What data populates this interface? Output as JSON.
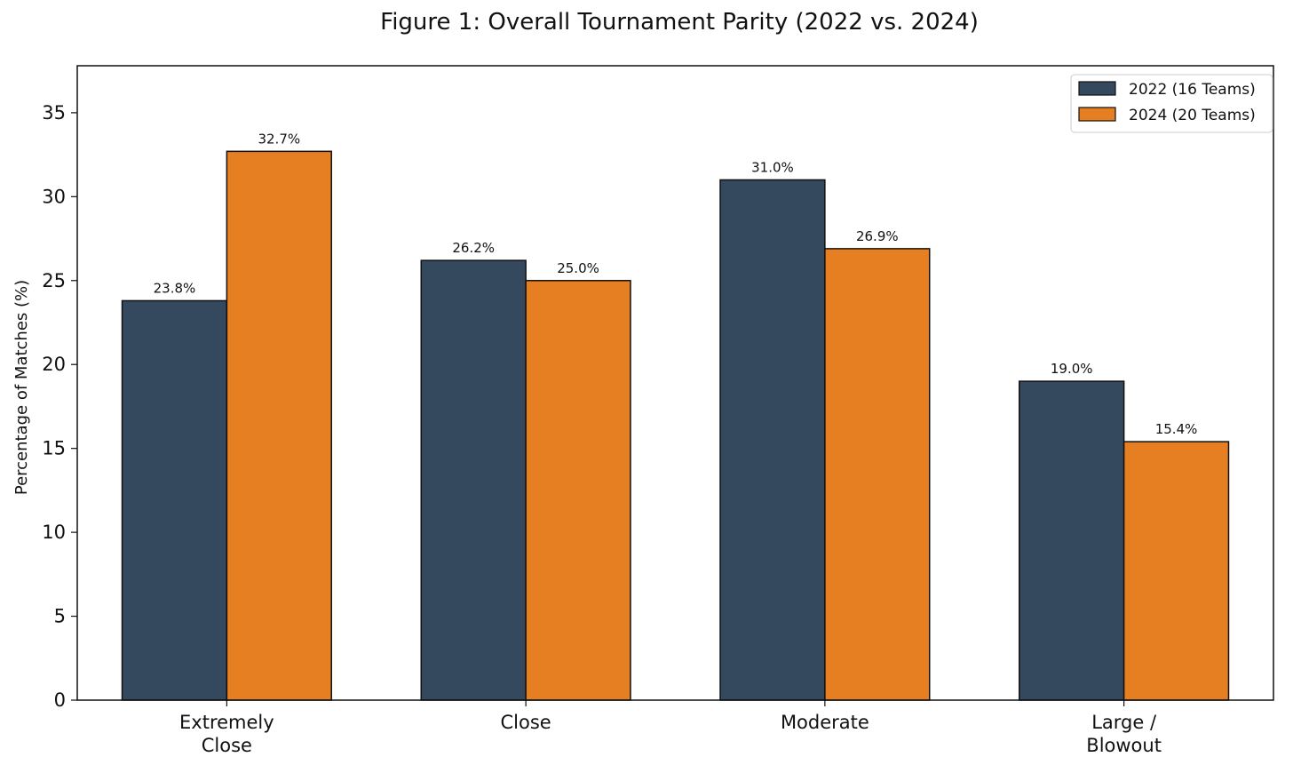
{
  "chart_data": {
    "type": "bar",
    "title": "Figure 1: Overall Tournament Parity (2022 vs. 2024)",
    "ylabel": "Percentage of Matches (%)",
    "xlabel": "",
    "categories": [
      [
        "Extremely",
        "Close"
      ],
      [
        "Close"
      ],
      [
        "Moderate"
      ],
      [
        "Large /",
        "Blowout"
      ]
    ],
    "series": [
      {
        "name": "2022 (16 Teams)",
        "color": "#34495e",
        "values": [
          23.8,
          26.2,
          31.0,
          19.0
        ],
        "labels": [
          "23.8%",
          "26.2%",
          "31.0%",
          "19.0%"
        ]
      },
      {
        "name": "2024 (20 Teams)",
        "color": "#e67e22",
        "values": [
          32.7,
          25.0,
          26.9,
          15.4
        ],
        "labels": [
          "32.7%",
          "25.0%",
          "26.9%",
          "15.4%"
        ]
      }
    ],
    "ylim": [
      0,
      37.8
    ],
    "yticks": [
      0,
      5,
      10,
      15,
      20,
      25,
      30,
      35
    ],
    "grid": false,
    "legend_position": "top-right"
  }
}
